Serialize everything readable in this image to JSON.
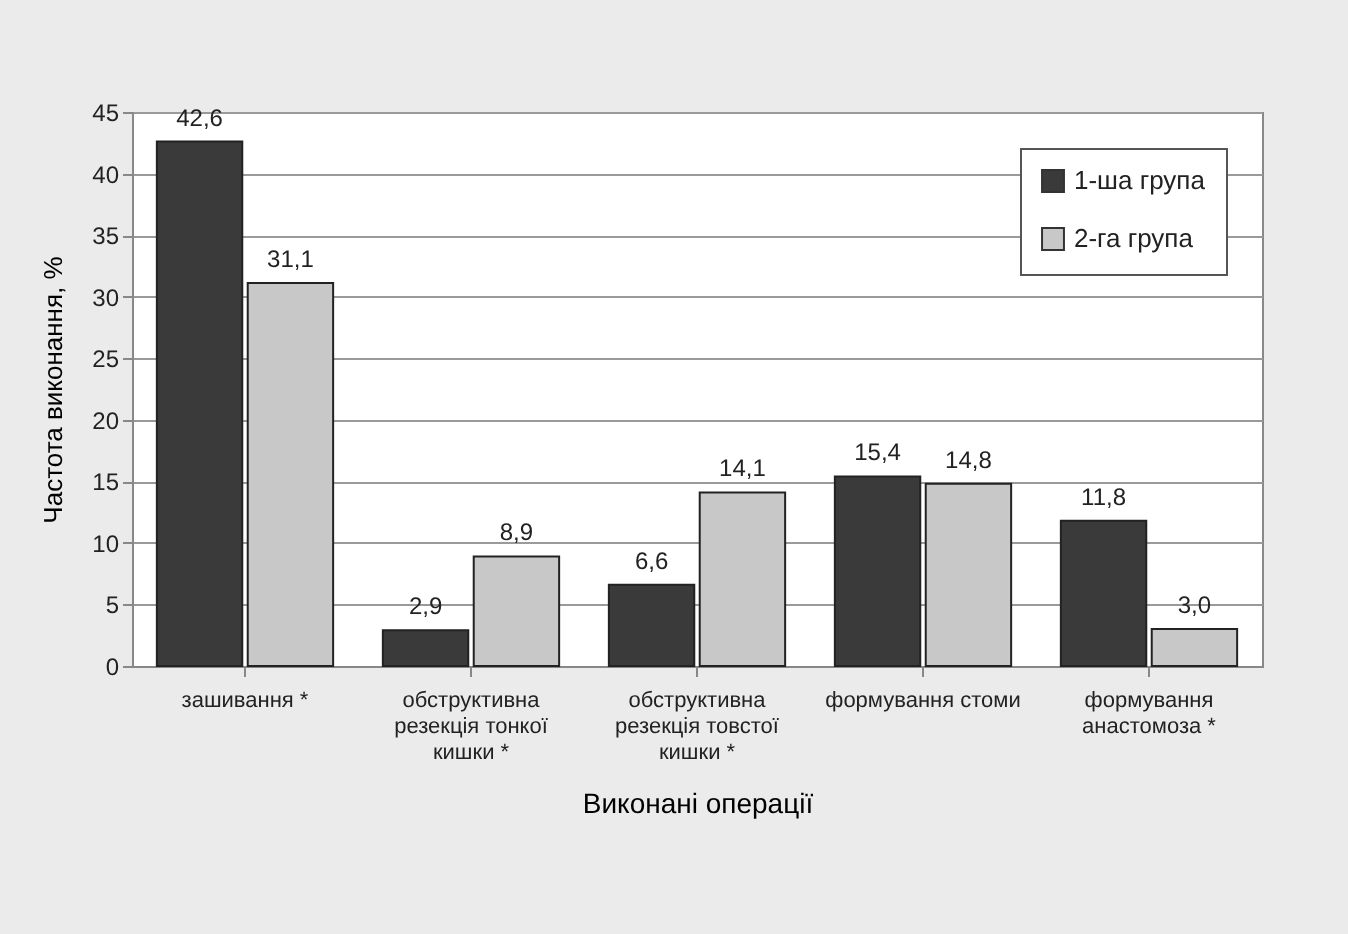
{
  "chart_data": {
    "type": "bar",
    "xlabel": "Виконані операції",
    "ylabel": "Частота виконання, %",
    "categories": [
      "зашивання *",
      "обструктивна\nрезекція тонкої\nкишки *",
      "обструктивна\nрезекція  товстої\nкишки *",
      "формування стоми",
      "формування\nанастомоза *"
    ],
    "series": [
      {
        "name": "1-ша група",
        "color": "#3a3a3a",
        "values": [
          42.6,
          2.9,
          6.6,
          15.4,
          11.8
        ]
      },
      {
        "name": "2-га група",
        "color": "#c8c8c8",
        "values": [
          31.1,
          8.9,
          14.1,
          14.8,
          3.0
        ]
      }
    ],
    "value_labels": [
      [
        "42,6",
        "2,9",
        "6,6",
        "15,4",
        "11,8"
      ],
      [
        "31,1",
        "8,9",
        "14,1",
        "14,8",
        "3,0"
      ]
    ],
    "ylim": [
      0,
      45
    ],
    "yticks": [
      0,
      5,
      10,
      15,
      20,
      25,
      30,
      35,
      40,
      45
    ],
    "grid": "y",
    "legend": "top right"
  }
}
